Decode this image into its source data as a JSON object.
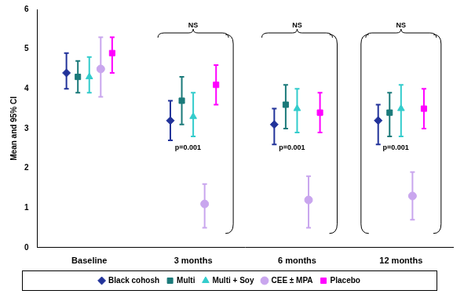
{
  "chart_data": {
    "type": "scatter",
    "y_label": "Mean and 95% CI",
    "categories": [
      "Baseline",
      "3 months",
      "6 months",
      "12 months"
    ],
    "series": [
      {
        "name": "Black cohosh",
        "color": "#22339a",
        "marker": "diamond",
        "values": [
          4.4,
          3.2,
          3.1,
          3.2
        ],
        "lower": [
          4.0,
          2.7,
          2.6,
          2.6
        ],
        "upper": [
          4.9,
          3.7,
          3.5,
          3.6
        ]
      },
      {
        "name": "Multi",
        "color": "#1b7a7a",
        "marker": "square",
        "values": [
          4.3,
          3.7,
          3.6,
          3.4
        ],
        "lower": [
          3.9,
          3.1,
          3.0,
          2.8
        ],
        "upper": [
          4.7,
          4.3,
          4.1,
          3.9
        ]
      },
      {
        "name": "Multi + Soy",
        "color": "#33cccc",
        "marker": "triangle",
        "values": [
          4.3,
          3.3,
          3.5,
          3.5
        ],
        "lower": [
          3.9,
          2.8,
          2.9,
          2.8
        ],
        "upper": [
          4.8,
          3.9,
          4.0,
          4.1
        ]
      },
      {
        "name": "CEE ± MPA",
        "color": "#c9a6ee",
        "marker": "circle",
        "values": [
          4.5,
          1.1,
          1.2,
          1.3
        ],
        "lower": [
          3.8,
          0.5,
          0.5,
          0.7
        ],
        "upper": [
          5.3,
          1.6,
          1.8,
          1.9
        ]
      },
      {
        "name": "Placebo",
        "color": "#ff00ff",
        "marker": "square",
        "values": [
          4.9,
          4.1,
          3.4,
          3.5
        ],
        "lower": [
          4.4,
          3.6,
          2.9,
          3.0
        ],
        "upper": [
          5.3,
          4.6,
          3.9,
          4.0
        ]
      }
    ],
    "annotations": [
      {
        "category": "3 months",
        "top": "NS",
        "bracket": "p=0.001"
      },
      {
        "category": "6 months",
        "top": "NS",
        "bracket": "p=0.001"
      },
      {
        "category": "12 months",
        "top": "NS",
        "bracket": "p=0.001"
      }
    ],
    "ylim": [
      0,
      6
    ],
    "yticks": [
      0,
      1,
      2,
      3,
      4,
      5,
      6
    ],
    "grid": false,
    "legend": "bottom"
  }
}
